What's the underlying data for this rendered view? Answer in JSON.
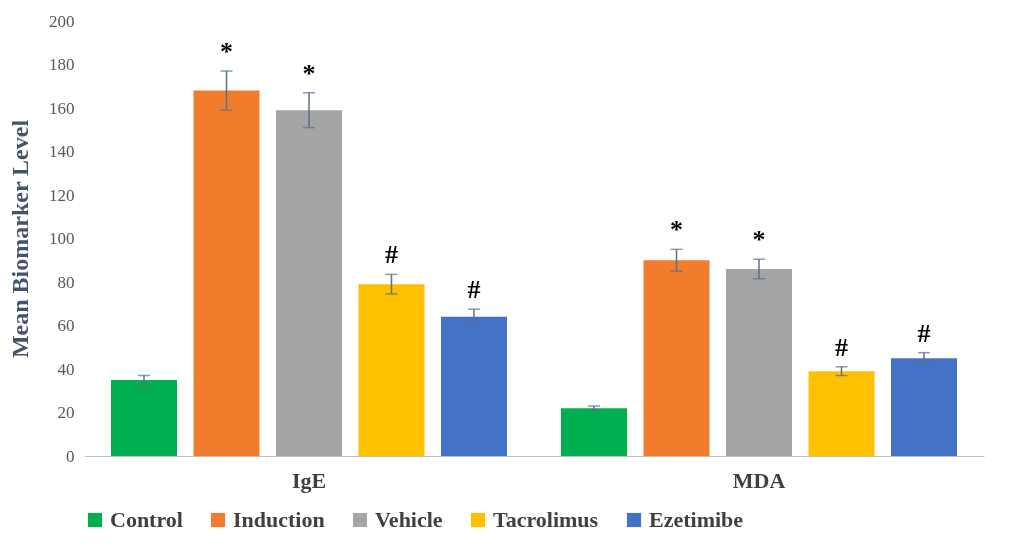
{
  "chart_data": {
    "type": "bar",
    "ylabel": "Mean Biomarker Level",
    "categories": [
      "IgE",
      "MDA"
    ],
    "series": [
      {
        "name": "Control",
        "color": "#00b050",
        "values": [
          35,
          22
        ],
        "errors": [
          2,
          1
        ],
        "value_labels": [
          null,
          null
        ]
      },
      {
        "name": "Induction",
        "color": "#f07c2c",
        "values": [
          168,
          90
        ],
        "errors": [
          9,
          5
        ],
        "value_labels": [
          "*",
          "*"
        ]
      },
      {
        "name": "Vehicle",
        "color": "#a5a5a5",
        "values": [
          159,
          86
        ],
        "errors": [
          8,
          4.5
        ],
        "value_labels": [
          "*",
          "*"
        ]
      },
      {
        "name": "Tacrolimus",
        "color": "#ffc000",
        "values": [
          79,
          39
        ],
        "errors": [
          4.5,
          2
        ],
        "value_labels": [
          "#",
          "#"
        ]
      },
      {
        "name": "Ezetimibe",
        "color": "#4472c4",
        "values": [
          64,
          45
        ],
        "errors": [
          3.5,
          2.5
        ],
        "value_labels": [
          "#",
          "#"
        ]
      }
    ],
    "ylim": [
      0,
      200
    ],
    "yticks": [
      0,
      20,
      40,
      60,
      80,
      100,
      120,
      140,
      160,
      180,
      200
    ],
    "grid": false,
    "legend": "bottom"
  }
}
